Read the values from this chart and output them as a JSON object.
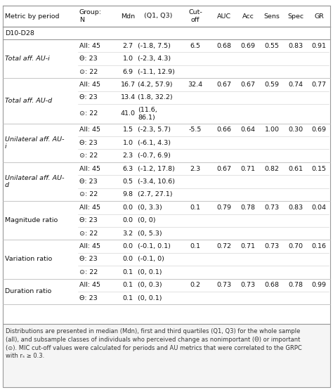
{
  "title_top": "D10-D28",
  "col_headers": [
    "Metric by period",
    "Group:\nN",
    "Mdn",
    "(Q1, Q3)",
    "Cut-\noff",
    "AUC",
    "Acc",
    "Sens",
    "Spec",
    "GR"
  ],
  "footnote": "Distributions are presented in median (Mdn), first and third quartiles (Q1, Q3) for the whole sample\n(all), and subsample classes of individuals who perceived change as nonimportant (Θ) or important\n(⊙). MIC cut-off values were calculated for periods and AU metrics that were correlated to the GRPC\nwith rₛ ≥ 0.3.",
  "rows": [
    {
      "metric": "Total aff. AU-i",
      "italic": true,
      "subrows": [
        {
          "group": "All: 45",
          "mdn": "2.7",
          "q1q3": "(-1.8, 7.5)",
          "cutoff": "6.5",
          "auc": "0.68",
          "acc": "0.69",
          "sens": "0.55",
          "spec": "0.83",
          "gr": "0.91"
        },
        {
          "group": "Θ: 23",
          "mdn": "1.0",
          "q1q3": "(-2.3, 4.3)",
          "cutoff": "",
          "auc": "",
          "acc": "",
          "sens": "",
          "spec": "",
          "gr": ""
        },
        {
          "group": "⊙: 22",
          "mdn": "6.9",
          "q1q3": "(-1.1, 12.9)",
          "cutoff": "",
          "auc": "",
          "acc": "",
          "sens": "",
          "spec": "",
          "gr": ""
        }
      ]
    },
    {
      "metric": "Total aff. AU-d",
      "italic": true,
      "subrows": [
        {
          "group": "All: 45",
          "mdn": "16.7",
          "q1q3": "(4.2, 57.9)",
          "cutoff": "32.4",
          "auc": "0.67",
          "acc": "0.67",
          "sens": "0.59",
          "spec": "0.74",
          "gr": "0.77"
        },
        {
          "group": "Θ: 23",
          "mdn": "13.4",
          "q1q3": "(1.8, 32.2)",
          "cutoff": "",
          "auc": "",
          "acc": "",
          "sens": "",
          "spec": "",
          "gr": ""
        },
        {
          "group": "⊙: 22",
          "mdn": "41.0",
          "q1q3": "(11.6,\n86.1)",
          "cutoff": "",
          "auc": "",
          "acc": "",
          "sens": "",
          "spec": "",
          "gr": ""
        }
      ]
    },
    {
      "metric": "Unilateral aff. AU-\ni",
      "italic": true,
      "subrows": [
        {
          "group": "All: 45",
          "mdn": "1.5",
          "q1q3": "(-2.3, 5.7)",
          "cutoff": "-5.5",
          "auc": "0.66",
          "acc": "0.64",
          "sens": "1.00",
          "spec": "0.30",
          "gr": "0.69"
        },
        {
          "group": "Θ: 23",
          "mdn": "1.0",
          "q1q3": "(-6.1, 4.3)",
          "cutoff": "",
          "auc": "",
          "acc": "",
          "sens": "",
          "spec": "",
          "gr": ""
        },
        {
          "group": "⊙: 22",
          "mdn": "2.3",
          "q1q3": "(-0.7, 6.9)",
          "cutoff": "",
          "auc": "",
          "acc": "",
          "sens": "",
          "spec": "",
          "gr": ""
        }
      ]
    },
    {
      "metric": "Unilateral aff. AU-\nd",
      "italic": true,
      "subrows": [
        {
          "group": "All: 45",
          "mdn": "6.3",
          "q1q3": "(-1.2, 17.8)",
          "cutoff": "2.3",
          "auc": "0.67",
          "acc": "0.71",
          "sens": "0.82",
          "spec": "0.61",
          "gr": "0.15"
        },
        {
          "group": "Θ: 23",
          "mdn": "0.5",
          "q1q3": "(-3.4, 10.6)",
          "cutoff": "",
          "auc": "",
          "acc": "",
          "sens": "",
          "spec": "",
          "gr": ""
        },
        {
          "group": "⊙: 22",
          "mdn": "9.8",
          "q1q3": "(2.7, 27.1)",
          "cutoff": "",
          "auc": "",
          "acc": "",
          "sens": "",
          "spec": "",
          "gr": ""
        }
      ]
    },
    {
      "metric": "Magnitude ratio",
      "italic": false,
      "subrows": [
        {
          "group": "All: 45",
          "mdn": "0.0",
          "q1q3": "(0, 3.3)",
          "cutoff": "0.1",
          "auc": "0.79",
          "acc": "0.78",
          "sens": "0.73",
          "spec": "0.83",
          "gr": "0.04"
        },
        {
          "group": "Θ: 23",
          "mdn": "0.0",
          "q1q3": "(0, 0)",
          "cutoff": "",
          "auc": "",
          "acc": "",
          "sens": "",
          "spec": "",
          "gr": ""
        },
        {
          "group": "⊙: 22",
          "mdn": "3.2",
          "q1q3": "(0, 5.3)",
          "cutoff": "",
          "auc": "",
          "acc": "",
          "sens": "",
          "spec": "",
          "gr": ""
        }
      ]
    },
    {
      "metric": "Variation ratio",
      "italic": false,
      "subrows": [
        {
          "group": "All: 45",
          "mdn": "0.0",
          "q1q3": "(-0.1, 0.1)",
          "cutoff": "0.1",
          "auc": "0.72",
          "acc": "0.71",
          "sens": "0.73",
          "spec": "0.70",
          "gr": "0.16"
        },
        {
          "group": "Θ: 23",
          "mdn": "0.0",
          "q1q3": "(-0.1, 0)",
          "cutoff": "",
          "auc": "",
          "acc": "",
          "sens": "",
          "spec": "",
          "gr": ""
        },
        {
          "group": "⊙: 22",
          "mdn": "0.1",
          "q1q3": "(0, 0.1)",
          "cutoff": "",
          "auc": "",
          "acc": "",
          "sens": "",
          "spec": "",
          "gr": ""
        }
      ]
    },
    {
      "metric": "Duration ratio",
      "italic": false,
      "subrows": [
        {
          "group": "All: 45",
          "mdn": "0.1",
          "q1q3": "(0, 0.3)",
          "cutoff": "0.2",
          "auc": "0.73",
          "acc": "0.73",
          "sens": "0.68",
          "spec": "0.78",
          "gr": "0.99"
        },
        {
          "group": "Θ: 23",
          "mdn": "0.1",
          "q1q3": "(0, 0.1)",
          "cutoff": "",
          "auc": "",
          "acc": "",
          "sens": "",
          "spec": "",
          "gr": ""
        }
      ]
    }
  ],
  "bg_color": "#ffffff",
  "border_color": "#999999",
  "inner_line_color": "#bbbbbb",
  "subrow_line_color": "#cccccc",
  "footnote_bg": "#f5f5f5",
  "text_color": "#111111",
  "font_size": 6.8,
  "footnote_font_size": 6.0
}
